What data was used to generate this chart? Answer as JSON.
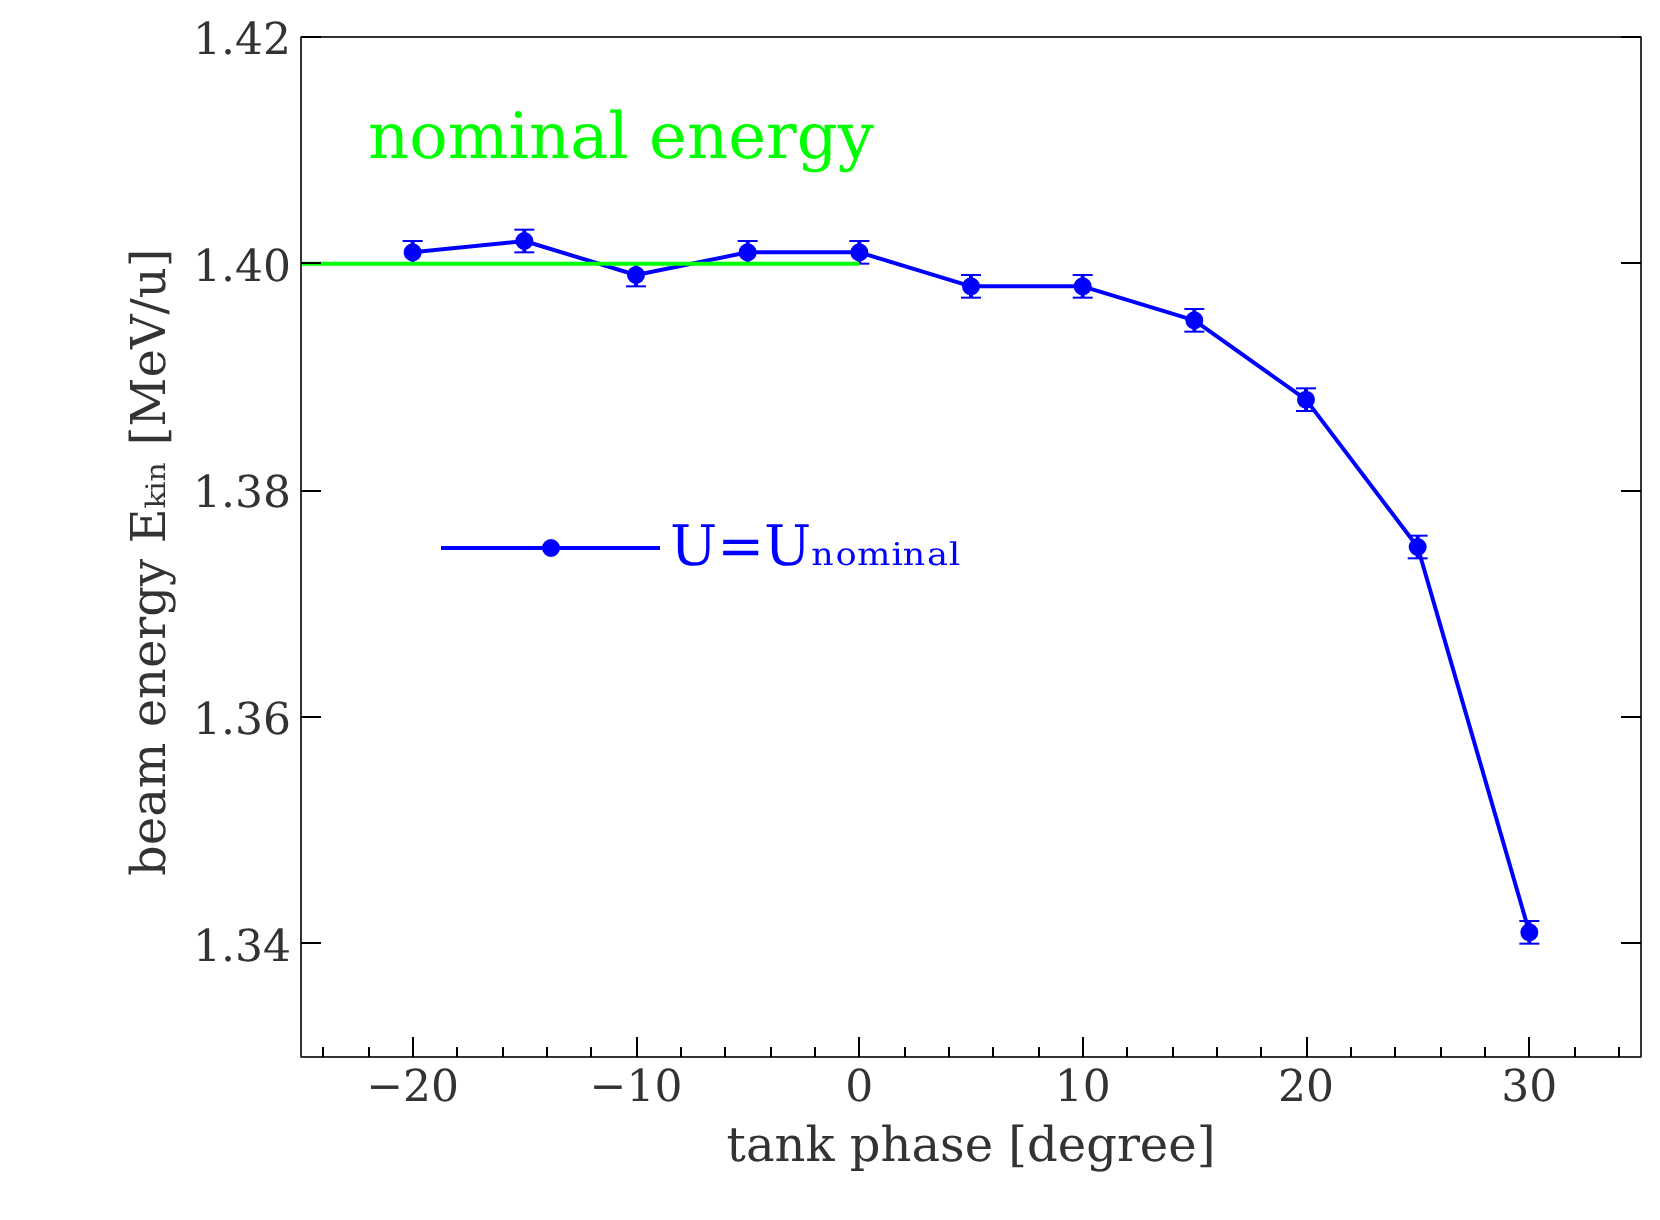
{
  "chart_data": {
    "type": "line",
    "xlabel": "tank phase [degree]",
    "ylabel": "beam energy  Eₖᵢₙ  [MeV/u]",
    "x": [
      -20,
      -15,
      -10,
      -5,
      0,
      5,
      10,
      15,
      20,
      25,
      30
    ],
    "series": [
      {
        "name": "U=Uₙₒₘᵢₙₐₗ",
        "color": "#0000ff",
        "values": [
          1.401,
          1.402,
          1.399,
          1.401,
          1.401,
          1.398,
          1.398,
          1.395,
          1.388,
          1.375,
          1.341
        ],
        "errors": [
          0.001,
          0.001,
          0.001,
          0.001,
          0.001,
          0.001,
          0.001,
          0.001,
          0.001,
          0.001,
          0.001
        ],
        "marker": "circle"
      },
      {
        "color": "#00ff00",
        "x": [
          0,
          -25
        ],
        "values": [
          1.4,
          1.4
        ],
        "marker": "none"
      }
    ],
    "annotations": [
      {
        "text": "nominal energy",
        "x": -22,
        "y": 1.4
      }
    ],
    "xlim": [
      -25,
      35
    ],
    "ylim": [
      1.33,
      1.42
    ],
    "xticks": [
      -20,
      -10,
      0,
      10,
      20,
      30
    ],
    "yticks": [
      1.34,
      1.36,
      1.38,
      {
        "value": 1.4,
        "label": "1.40"
      },
      1.42
    ],
    "grid": false,
    "legend": "left"
  }
}
